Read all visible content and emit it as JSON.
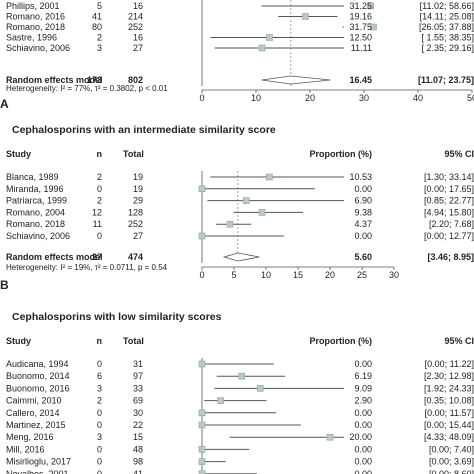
{
  "chart_data": [
    {
      "type": "forest",
      "panel_letter": "A",
      "headers": {},
      "studies": [
        {
          "study": "Phillips, 2001",
          "n": "5",
          "total": "16",
          "est": 31.25,
          "lo": 11.02,
          "hi": 58.66,
          "prop": "31.25",
          "ci": "[11.02; 58.66]"
        },
        {
          "study": "Romano, 2016",
          "n": "41",
          "total": "214",
          "est": 19.16,
          "lo": 14.11,
          "hi": 25.08,
          "prop": "19.16",
          "ci": "[14.11; 25.08]"
        },
        {
          "study": "Romano, 2018",
          "n": "80",
          "total": "252",
          "est": 31.75,
          "lo": 26.05,
          "hi": 37.88,
          "prop": "31.75",
          "ci": "[26.05; 37.88]"
        },
        {
          "study": "Sastre, 1996",
          "n": "2",
          "total": "16",
          "est": 12.5,
          "lo": 1.55,
          "hi": 38.35,
          "prop": "12.50",
          "ci": "[ 1.55; 38.35]"
        },
        {
          "study": "Schiavino, 2006",
          "n": "3",
          "total": "27",
          "est": 11.11,
          "lo": 2.35,
          "hi": 29.16,
          "prop": "11.11",
          "ci": "[ 2.35; 29.16]"
        }
      ],
      "pooled": {
        "label": "Random effects model",
        "n": "173",
        "total": "802",
        "est": 16.45,
        "lo": 11.07,
        "hi": 23.75,
        "prop": "16.45",
        "ci": "[11.07; 23.75]"
      },
      "heterogeneity": "Heterogeneity: I² = 77%, τ² = 0.3802, p < 0.01",
      "x_ticks": [
        "0",
        "10",
        "20",
        "30",
        "40",
        "50"
      ],
      "xlim": [
        0,
        50
      ]
    },
    {
      "type": "forest",
      "panel_letter": "B",
      "title": "Cephalosporins with an intermediate similarity score",
      "headers": {
        "study": "Study",
        "n": "n",
        "total": "Total",
        "prop": "Proportion (%)",
        "ci": "95% CI"
      },
      "studies": [
        {
          "study": "Blanca, 1989",
          "n": "2",
          "total": "19",
          "est": 10.53,
          "lo": 1.3,
          "hi": 33.14,
          "prop": "10.53",
          "ci": "[1.30; 33.14]"
        },
        {
          "study": "Miranda, 1996",
          "n": "0",
          "total": "19",
          "est": 0.0,
          "lo": 0.0,
          "hi": 17.65,
          "prop": "0.00",
          "ci": "[0.00; 17.65]"
        },
        {
          "study": "Patriarca, 1999",
          "n": "2",
          "total": "29",
          "est": 6.9,
          "lo": 0.85,
          "hi": 22.77,
          "prop": "6.90",
          "ci": "[0.85; 22.77]"
        },
        {
          "study": "Romano, 2004",
          "n": "12",
          "total": "128",
          "est": 9.38,
          "lo": 4.94,
          "hi": 15.8,
          "prop": "9.38",
          "ci": "[4.94; 15.80]"
        },
        {
          "study": "Romano, 2018",
          "n": "11",
          "total": "252",
          "est": 4.37,
          "lo": 2.2,
          "hi": 7.68,
          "prop": "4.37",
          "ci": "[2.20; 7.68]"
        },
        {
          "study": "Schiavino, 2006",
          "n": "0",
          "total": "27",
          "est": 0.0,
          "lo": 0.0,
          "hi": 12.77,
          "prop": "0.00",
          "ci": "[0.00; 12.77]"
        }
      ],
      "pooled": {
        "label": "Random effects model",
        "n": "27",
        "total": "474",
        "est": 5.6,
        "lo": 3.46,
        "hi": 8.95,
        "prop": "5.60",
        "ci": "[3.46; 8.95]"
      },
      "heterogeneity": "Heterogeneity: I² = 19%, τ² = 0.0711, p = 0.54",
      "x_ticks": [
        "0",
        "5",
        "10",
        "15",
        "20",
        "25",
        "30"
      ],
      "xlim": [
        0,
        30
      ]
    },
    {
      "type": "forest",
      "title": "Cephalosporins with low similarity scores",
      "headers": {
        "study": "Study",
        "n": "n",
        "total": "Total",
        "prop": "Proportion (%)",
        "ci": "95% CI"
      },
      "studies": [
        {
          "study": "Audicana, 1994",
          "n": "0",
          "total": "31",
          "est": 0.0,
          "lo": 0.0,
          "hi": 11.22,
          "prop": "0.00",
          "ci": "[0.00; 11.22]"
        },
        {
          "study": "Buonomo, 2014",
          "n": "6",
          "total": "97",
          "est": 6.19,
          "lo": 2.3,
          "hi": 12.98,
          "prop": "6.19",
          "ci": "[2.30; 12.98]"
        },
        {
          "study": "Buonomo, 2016",
          "n": "3",
          "total": "33",
          "est": 9.09,
          "lo": 1.92,
          "hi": 24.33,
          "prop": "9.09",
          "ci": "[1.92; 24.33]"
        },
        {
          "study": "Caimmi, 2010",
          "n": "2",
          "total": "69",
          "est": 2.9,
          "lo": 0.35,
          "hi": 10.08,
          "prop": "2.90",
          "ci": "[0.35; 10.08]"
        },
        {
          "study": "Callero, 2014",
          "n": "0",
          "total": "30",
          "est": 0.0,
          "lo": 0.0,
          "hi": 11.57,
          "prop": "0.00",
          "ci": "[0.00; 11.57]"
        },
        {
          "study": "Martinez, 2015",
          "n": "0",
          "total": "22",
          "est": 0.0,
          "lo": 0.0,
          "hi": 15.44,
          "prop": "0.00",
          "ci": "[0.00; 15.44]"
        },
        {
          "study": "Meng, 2016",
          "n": "3",
          "total": "15",
          "est": 20.0,
          "lo": 4.33,
          "hi": 48.09,
          "prop": "20.00",
          "ci": "[4.33; 48.09]"
        },
        {
          "study": "Mill, 2016",
          "n": "0",
          "total": "48",
          "est": 0.0,
          "lo": 0.0,
          "hi": 7.4,
          "prop": "0.00",
          "ci": "[0.00; 7.40]"
        },
        {
          "study": "Misirlioglu, 2017",
          "n": "0",
          "total": "98",
          "est": 0.0,
          "lo": 0.0,
          "hi": 3.69,
          "prop": "0.00",
          "ci": "[0.00; 3.69]"
        },
        {
          "study": "Novalbos, 2001",
          "n": "0",
          "total": "41",
          "est": 0.0,
          "lo": 0.0,
          "hi": 8.6,
          "prop": "0.00",
          "ci": "[0.00; 8.60]"
        }
      ],
      "xlim": [
        0,
        30
      ]
    }
  ],
  "panel_letter_c": "B",
  "colors": {
    "box": "#b9c9c4",
    "box_stroke": "#8fa39d",
    "line": "#555555",
    "text": "#222222",
    "dash": "#888888"
  }
}
